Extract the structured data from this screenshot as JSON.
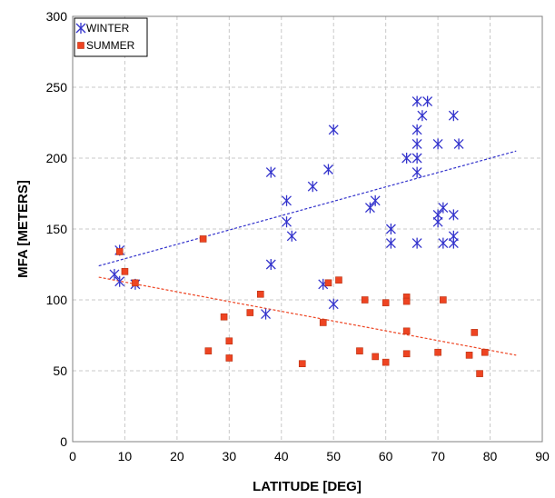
{
  "chart_data": {
    "type": "scatter",
    "title": "",
    "xlabel": "LATITUDE [DEG]",
    "ylabel": "MFA  [METERS]",
    "xlim": [
      0,
      90
    ],
    "ylim": [
      0,
      300
    ],
    "xticks": [
      0,
      10,
      20,
      30,
      40,
      50,
      60,
      70,
      80,
      90
    ],
    "yticks": [
      0,
      50,
      100,
      150,
      200,
      250,
      300
    ],
    "grid": true,
    "legend_position": "top-left",
    "series": [
      {
        "name": "WINTER",
        "marker": "asterisk",
        "color": "#3333cc",
        "points": [
          [
            8,
            118
          ],
          [
            9,
            135
          ],
          [
            9,
            113
          ],
          [
            12,
            111
          ],
          [
            37,
            90
          ],
          [
            38,
            190
          ],
          [
            38,
            125
          ],
          [
            41,
            155
          ],
          [
            41,
            170
          ],
          [
            42,
            145
          ],
          [
            46,
            180
          ],
          [
            48,
            111
          ],
          [
            49,
            192
          ],
          [
            50,
            220
          ],
          [
            50,
            97
          ],
          [
            57,
            165
          ],
          [
            58,
            170
          ],
          [
            61,
            150
          ],
          [
            61,
            140
          ],
          [
            64,
            200
          ],
          [
            66,
            240
          ],
          [
            66,
            220
          ],
          [
            66,
            210
          ],
          [
            66,
            200
          ],
          [
            66,
            190
          ],
          [
            66,
            140
          ],
          [
            67,
            230
          ],
          [
            68,
            240
          ],
          [
            70,
            210
          ],
          [
            70,
            160
          ],
          [
            70,
            155
          ],
          [
            71,
            165
          ],
          [
            71,
            140
          ],
          [
            73,
            230
          ],
          [
            73,
            160
          ],
          [
            73,
            145
          ],
          [
            73,
            140
          ],
          [
            74,
            210
          ]
        ]
      },
      {
        "name": "SUMMER",
        "marker": "square",
        "color": "#ee4422",
        "points": [
          [
            9,
            134
          ],
          [
            10,
            120
          ],
          [
            12,
            112
          ],
          [
            25,
            143
          ],
          [
            26,
            64
          ],
          [
            29,
            88
          ],
          [
            30,
            71
          ],
          [
            30,
            59
          ],
          [
            34,
            91
          ],
          [
            36,
            104
          ],
          [
            44,
            55
          ],
          [
            48,
            84
          ],
          [
            49,
            112
          ],
          [
            51,
            114
          ],
          [
            55,
            64
          ],
          [
            56,
            100
          ],
          [
            58,
            60
          ],
          [
            60,
            98
          ],
          [
            60,
            56
          ],
          [
            64,
            102
          ],
          [
            64,
            99
          ],
          [
            64,
            78
          ],
          [
            64,
            62
          ],
          [
            70,
            63
          ],
          [
            71,
            100
          ],
          [
            76,
            61
          ],
          [
            77,
            77
          ],
          [
            78,
            48
          ],
          [
            79,
            63
          ]
        ]
      }
    ],
    "trendlines": [
      {
        "series": "WINTER",
        "color": "#3333cc",
        "x": [
          5,
          85
        ],
        "y": [
          124,
          205
        ]
      },
      {
        "series": "SUMMER",
        "color": "#ee4422",
        "x": [
          5,
          85
        ],
        "y": [
          116,
          61
        ]
      }
    ]
  }
}
